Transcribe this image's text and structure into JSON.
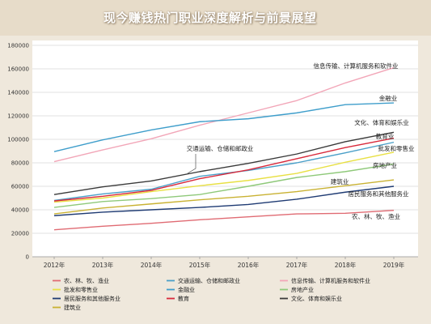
{
  "page_title": "现今赚钱热门职业深度解析与前景展望",
  "chart_data": {
    "type": "line",
    "title": "",
    "xlabel": "",
    "ylabel": "",
    "categories": [
      "2012年",
      "2013年",
      "2014年",
      "2015年",
      "2016年",
      "2017年",
      "2018年",
      "2019年"
    ],
    "ylim": [
      0,
      180000
    ],
    "yticks": [
      0,
      20000,
      40000,
      60000,
      80000,
      100000,
      120000,
      140000,
      160000,
      180000
    ],
    "ytick_labels": [
      "0",
      "20000",
      "40000",
      "60000",
      "80000",
      "100000",
      "120000",
      "140000",
      "160000",
      "180000"
    ],
    "grid": "horizontal",
    "legend_position": "bottom",
    "series": [
      {
        "name": "农、林、牧、渔业",
        "color": "#e06b73",
        "values": [
          23000,
          26000,
          28500,
          31500,
          34000,
          36500,
          37000,
          39500
        ]
      },
      {
        "name": "交通运输、仓储和邮政业",
        "color": "#4a9fc8",
        "values": [
          48000,
          53500,
          57500,
          68500,
          73500,
          80000,
          88500,
          97500
        ]
      },
      {
        "name": "信息传输、计算机服务和软件业",
        "color": "#f2a6b8",
        "values": [
          81000,
          91000,
          100500,
          112000,
          122500,
          133000,
          148000,
          161000
        ]
      },
      {
        "name": "批发和零售业",
        "color": "#e8e044",
        "values": [
          46500,
          50000,
          55500,
          60500,
          65000,
          71000,
          80500,
          89000
        ]
      },
      {
        "name": "金融业",
        "color": "#3f9ecb",
        "values": [
          89500,
          99500,
          108000,
          115000,
          117500,
          122500,
          129500,
          131000
        ]
      },
      {
        "name": "房地产业",
        "color": "#8fc97a",
        "values": [
          42000,
          47000,
          49500,
          53000,
          60000,
          67500,
          72500,
          79000
        ]
      },
      {
        "name": "居民服务和其他服务业",
        "color": "#1f3b73",
        "values": [
          35000,
          38000,
          40000,
          42000,
          44500,
          49000,
          55000,
          60000
        ]
      },
      {
        "name": "教育",
        "color": "#d8293b",
        "values": [
          47500,
          51500,
          56500,
          66500,
          74000,
          83500,
          93000,
          101000
        ]
      },
      {
        "name": "文化、体育和娱乐业",
        "color": "#3a3a3a",
        "values": [
          53000,
          59500,
          64500,
          72500,
          79500,
          87500,
          98000,
          106000
        ]
      },
      {
        "name": "建筑业",
        "color": "#c9b233",
        "values": [
          36500,
          41500,
          45000,
          48500,
          51500,
          55500,
          60500,
          65500
        ]
      }
    ],
    "annotations": [
      "信息传输、计算机服务和软件业",
      "金融业",
      "文化、体育和娱乐业",
      "教育业",
      "批发和零售业",
      "房地产业",
      "建筑业",
      "居民服务和其他服务业",
      "农、林、牧、渔业",
      "交通运输、仓储和邮政业"
    ]
  }
}
